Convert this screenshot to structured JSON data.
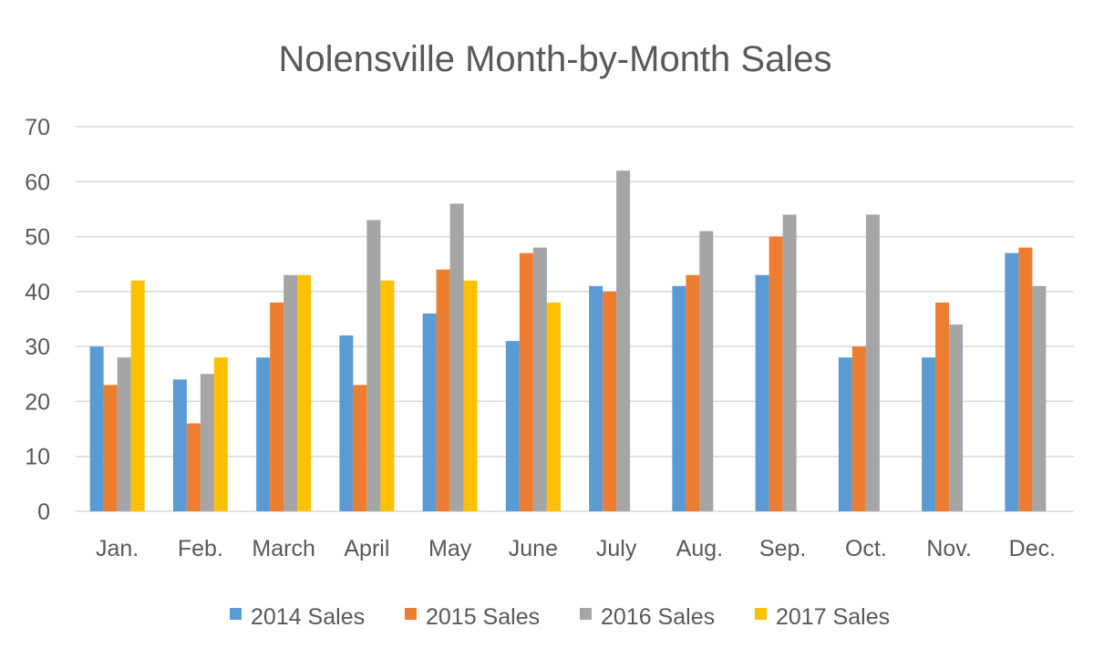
{
  "chart_data": {
    "type": "bar",
    "title": "Nolensville Month-by-Month Sales",
    "xlabel": "",
    "ylabel": "",
    "ylim": [
      0,
      70
    ],
    "yticks": [
      0,
      10,
      20,
      30,
      40,
      50,
      60,
      70
    ],
    "grid": true,
    "legend_position": "bottom",
    "categories": [
      "Jan.",
      "Feb.",
      "March",
      "April",
      "May",
      "June",
      "July",
      "Aug.",
      "Sep.",
      "Oct.",
      "Nov.",
      "Dec."
    ],
    "series": [
      {
        "name": "2014 Sales",
        "color": "#5b9bd5",
        "values": [
          30,
          24,
          28,
          32,
          36,
          31,
          41,
          41,
          43,
          28,
          28,
          47
        ]
      },
      {
        "name": "2015 Sales",
        "color": "#ed7d31",
        "values": [
          23,
          16,
          38,
          23,
          44,
          47,
          40,
          43,
          50,
          30,
          38,
          48
        ]
      },
      {
        "name": "2016 Sales",
        "color": "#a5a5a5",
        "values": [
          28,
          25,
          43,
          53,
          56,
          48,
          62,
          51,
          54,
          54,
          34,
          41
        ]
      },
      {
        "name": "2017 Sales",
        "color": "#ffc000",
        "values": [
          42,
          28,
          43,
          42,
          42,
          38,
          null,
          null,
          null,
          null,
          null,
          null
        ]
      }
    ]
  }
}
